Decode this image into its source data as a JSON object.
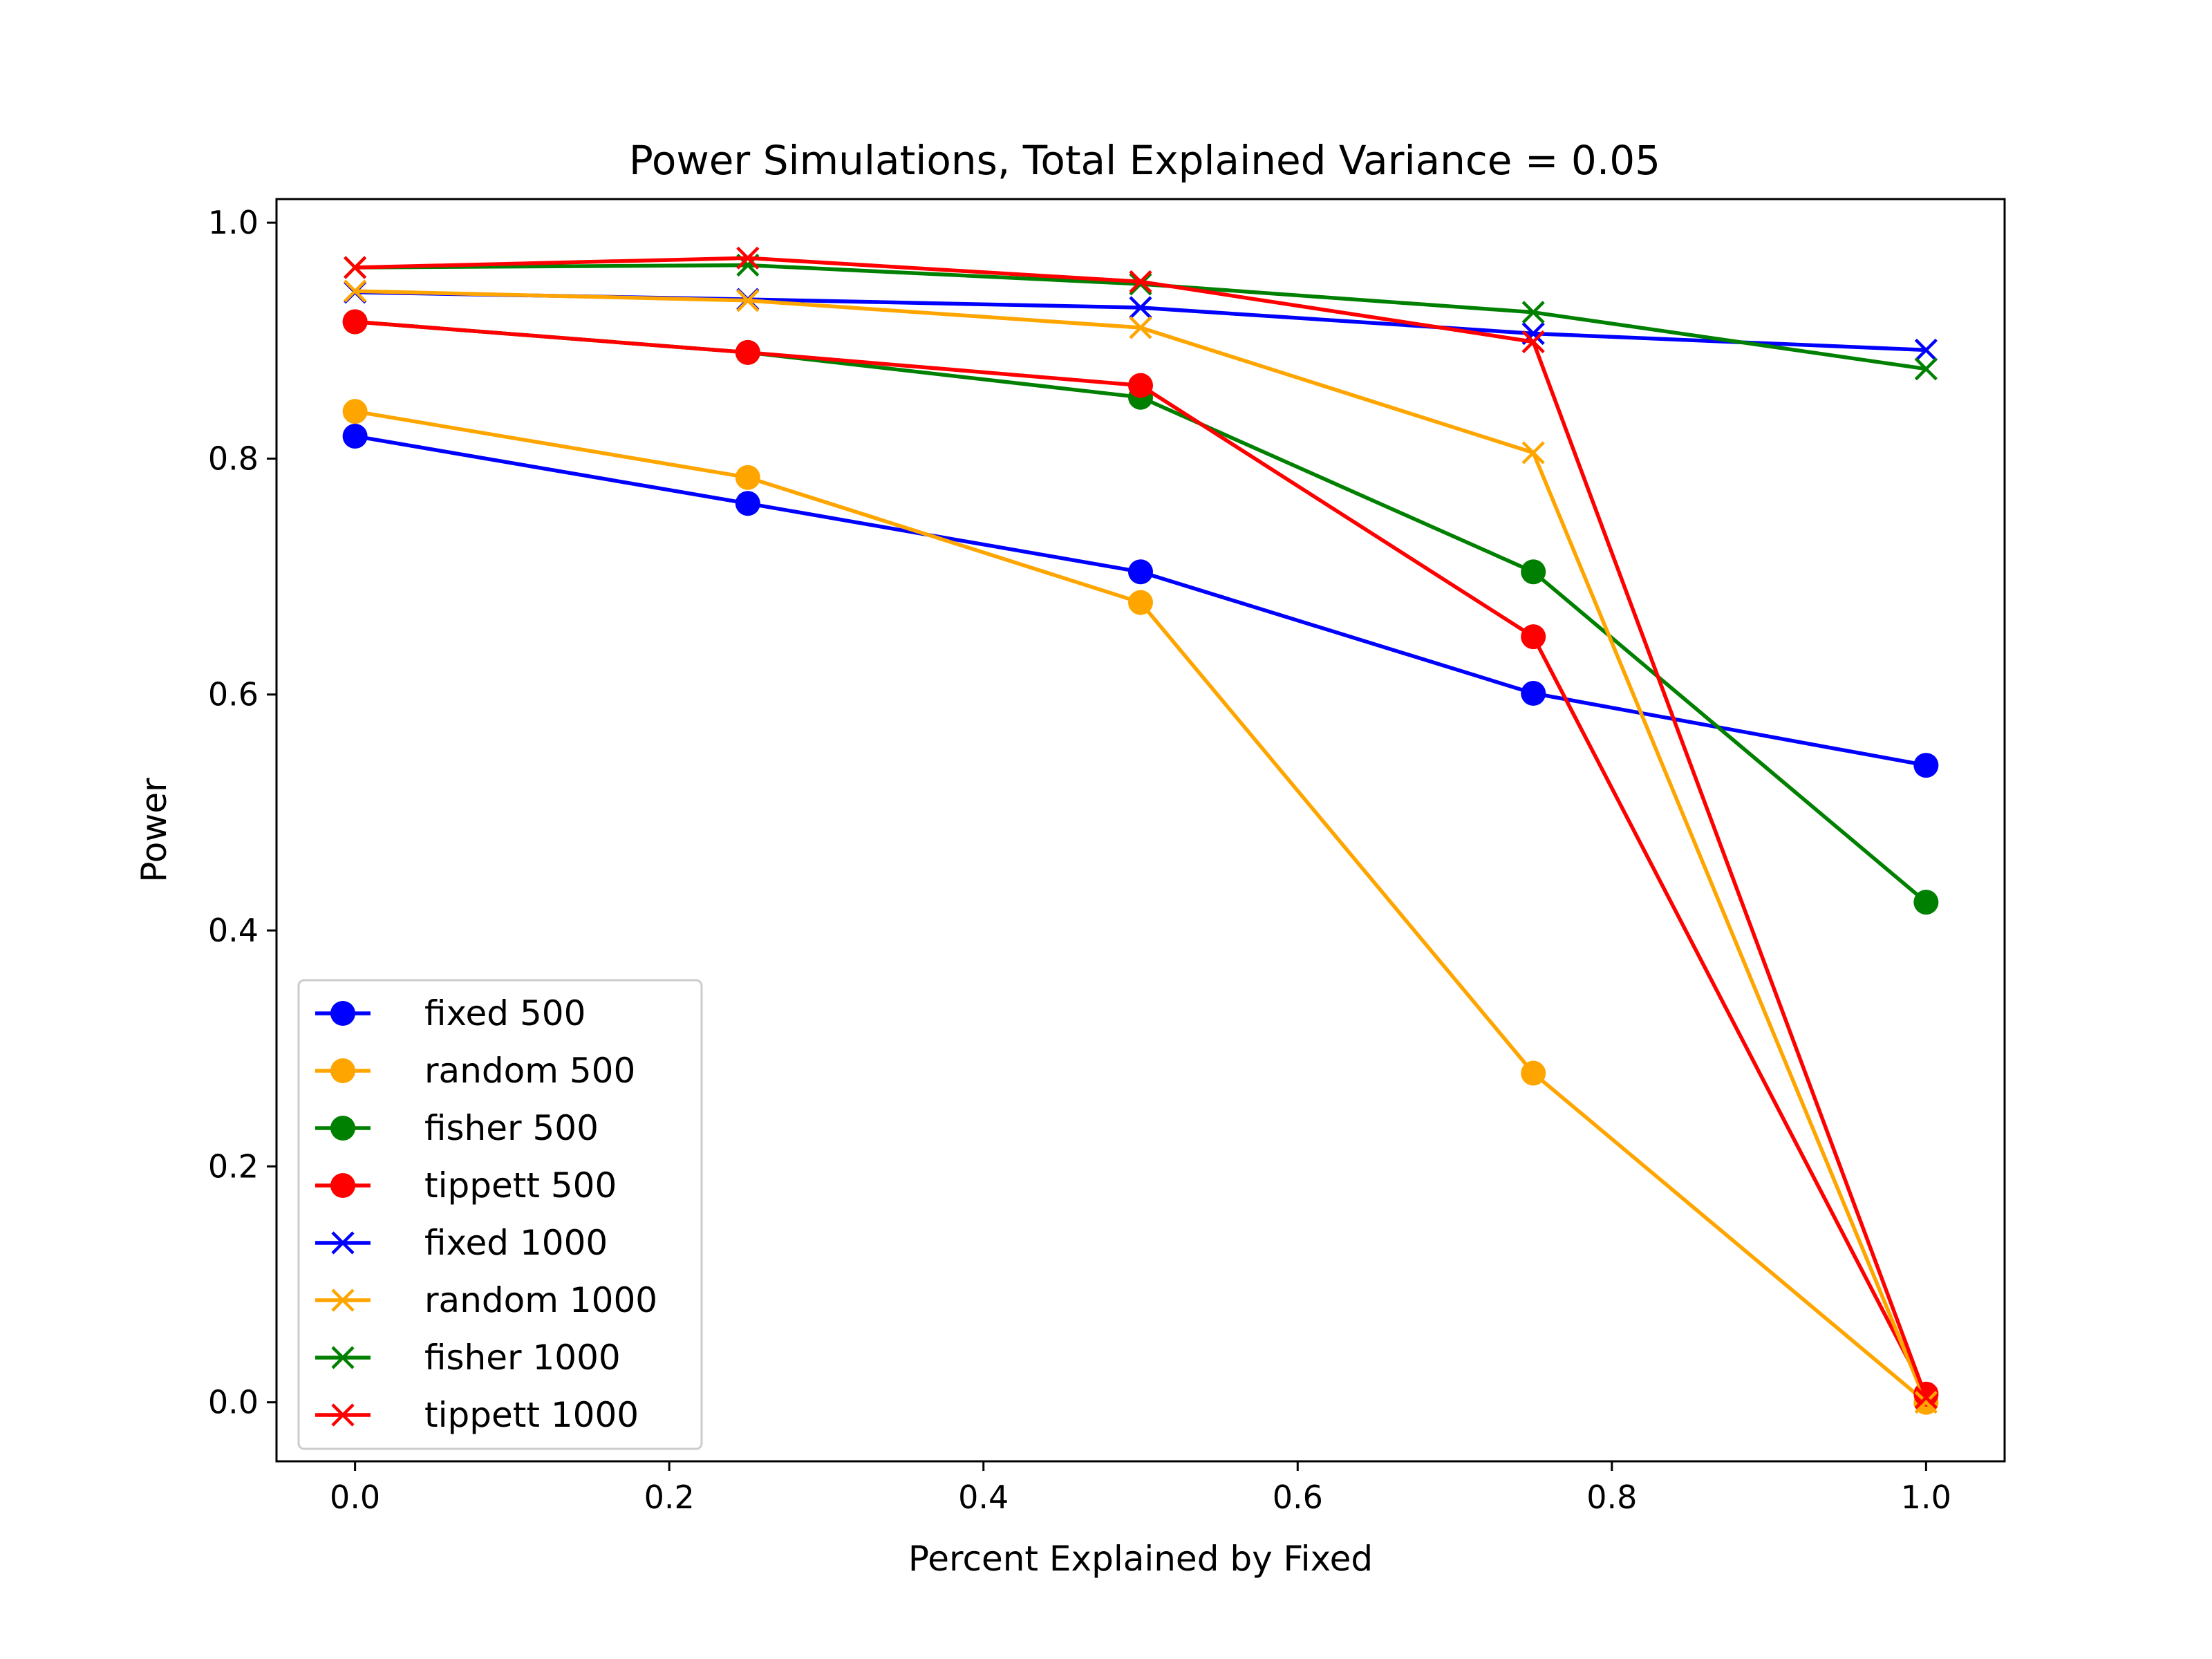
{
  "chart_data": {
    "type": "line",
    "title": "Power Simulations, Total Explained Variance = 0.05",
    "xlabel": "Percent Explained by Fixed",
    "ylabel": "Power",
    "xlim": [
      -0.05,
      1.05
    ],
    "ylim": [
      -0.05,
      1.02
    ],
    "x_ticks": [
      "0.0",
      "0.2",
      "0.4",
      "0.6",
      "0.8",
      "1.0"
    ],
    "y_ticks": [
      "0.0",
      "0.2",
      "0.4",
      "0.6",
      "0.8",
      "1.0"
    ],
    "grid": false,
    "legend_position": "lower-left",
    "x": [
      0.0,
      0.25,
      0.5,
      0.75,
      1.0
    ],
    "series": [
      {
        "name": "fixed 500",
        "color": "#0000ff",
        "marker": "circle",
        "values": [
          0.819,
          0.762,
          0.704,
          0.601,
          0.54
        ]
      },
      {
        "name": "random 500",
        "color": "#ffa500",
        "marker": "circle",
        "values": [
          0.84,
          0.784,
          0.678,
          0.279,
          0.0
        ]
      },
      {
        "name": "fisher 500",
        "color": "#008000",
        "marker": "circle",
        "values": [
          0.916,
          0.89,
          0.852,
          0.704,
          0.424
        ]
      },
      {
        "name": "tippett 500",
        "color": "#ff0000",
        "marker": "circle",
        "values": [
          0.916,
          0.89,
          0.862,
          0.649,
          0.007
        ]
      },
      {
        "name": "fixed 1000",
        "color": "#0000ff",
        "marker": "x",
        "values": [
          0.941,
          0.935,
          0.928,
          0.906,
          0.892
        ]
      },
      {
        "name": "random 1000",
        "color": "#ffa500",
        "marker": "x",
        "values": [
          0.942,
          0.934,
          0.911,
          0.805,
          0.0
        ]
      },
      {
        "name": "fisher 1000",
        "color": "#008000",
        "marker": "x",
        "values": [
          0.962,
          0.964,
          0.948,
          0.924,
          0.876
        ]
      },
      {
        "name": "tippett 1000",
        "color": "#ff0000",
        "marker": "x",
        "values": [
          0.962,
          0.97,
          0.95,
          0.899,
          0.004
        ]
      }
    ]
  }
}
